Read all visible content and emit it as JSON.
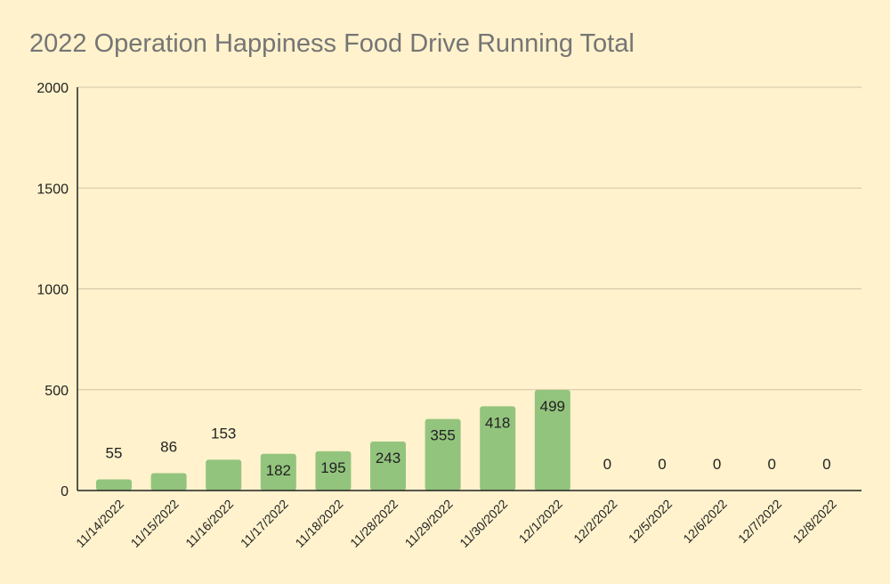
{
  "chart_data": {
    "type": "bar",
    "title": "2022 Operation Happiness Food Drive Running Total",
    "categories": [
      "11/14/2022",
      "11/15/2022",
      "11/16/2022",
      "11/17/2022",
      "11/18/2022",
      "11/28/2022",
      "11/29/2022",
      "11/30/2022",
      "12/1/2022",
      "12/2/2022",
      "12/5/2022",
      "12/6/2022",
      "12/7/2022",
      "12/8/2022"
    ],
    "values": [
      55,
      86,
      153,
      182,
      195,
      243,
      355,
      418,
      499,
      0,
      0,
      0,
      0,
      0
    ],
    "ylim": [
      0,
      2000
    ],
    "yticks": [
      0,
      500,
      1000,
      1500,
      2000
    ],
    "xlabel": "",
    "ylabel": "",
    "grid": true,
    "legend": "none",
    "colors": {
      "bar": "#93c47d",
      "background": "#fff2cc",
      "title": "#757575",
      "grid": "#cfc6a8",
      "axis": "#222222"
    }
  }
}
